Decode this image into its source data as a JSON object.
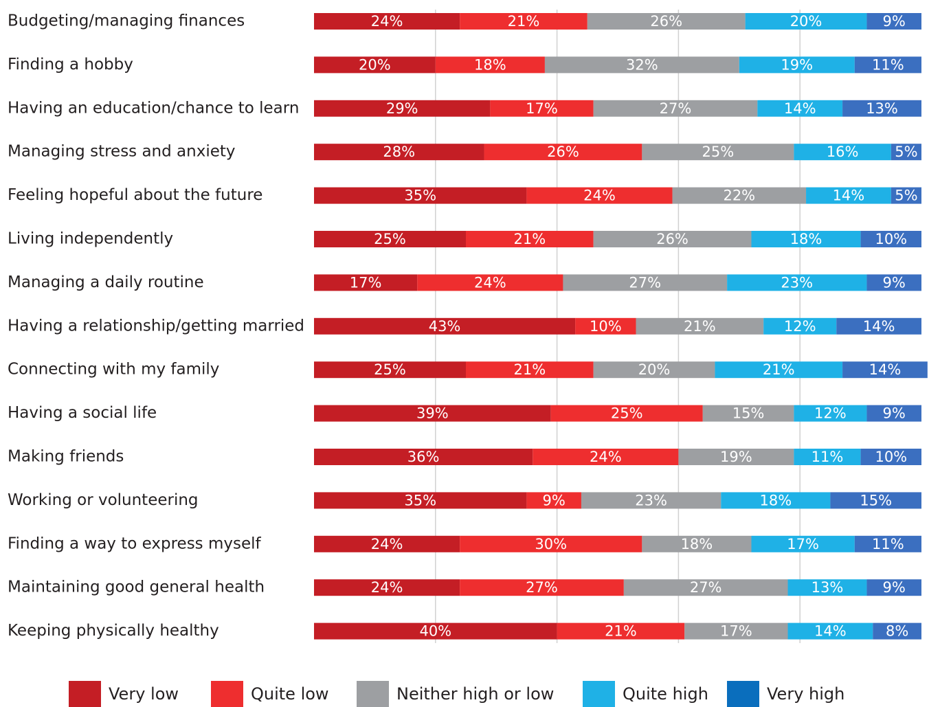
{
  "chart_data": {
    "type": "stacked_bar",
    "orientation": "horizontal",
    "categories": [
      "Budgeting/managing finances",
      "Finding a hobby",
      "Having an education/chance to learn",
      "Managing stress and anxiety",
      "Feeling hopeful about the future",
      "Living independently",
      "Managing a daily routine",
      "Having a relationship/getting married",
      "Connecting with my family",
      "Having a social life",
      "Making friends",
      "Working or volunteering",
      "Finding a way to express myself",
      "Maintaining good general health",
      "Keeping physically healthy"
    ],
    "series": [
      {
        "name": "Very low",
        "color": "#c41e25",
        "values": [
          24,
          20,
          29,
          28,
          35,
          25,
          17,
          43,
          25,
          39,
          36,
          35,
          24,
          24,
          40
        ],
        "value_labels": [
          "24%",
          "20%",
          "29%",
          "28%",
          "35%",
          "25%",
          "17%",
          "43%",
          "25%",
          "39%",
          "36%",
          "35%",
          "24%",
          "24%",
          "40%"
        ]
      },
      {
        "name": "Quite low",
        "color": "#ee2e2f",
        "values": [
          21,
          18,
          17,
          26,
          24,
          21,
          24,
          10,
          21,
          25,
          24,
          9,
          30,
          27,
          21
        ],
        "value_labels": [
          "21%",
          "18%",
          "17%",
          "26%",
          "24%",
          "21%",
          "24%",
          "10%",
          "21%",
          "25%",
          "24%",
          "9%",
          "30%",
          "27%",
          "21%"
        ]
      },
      {
        "name": "Neither high or low",
        "color": "#9d9fa2",
        "values": [
          26,
          32,
          27,
          25,
          22,
          26,
          27,
          21,
          20,
          15,
          19,
          23,
          18,
          27,
          17
        ],
        "value_labels": [
          "26%",
          "32%",
          "27%",
          "25%",
          "22%",
          "26%",
          "27%",
          "21%",
          "20%",
          "15%",
          "19%",
          "23%",
          "18%",
          "27%",
          "17%"
        ]
      },
      {
        "name": "Quite high",
        "color": "#1fb1e6",
        "values": [
          20,
          19,
          14,
          16,
          14,
          18,
          23,
          12,
          21,
          12,
          11,
          18,
          17,
          13,
          14
        ],
        "value_labels": [
          "20%",
          "19%",
          "14%",
          "16%",
          "14%",
          "18%",
          "23%",
          "12%",
          "21%",
          "12%",
          "11%",
          "18%",
          "17%",
          "13%",
          "14%"
        ]
      },
      {
        "name": "Very high",
        "color": "#3b6fc0",
        "values": [
          9,
          11,
          13,
          5,
          5,
          10,
          9,
          14,
          14,
          9,
          10,
          15,
          11,
          9,
          8
        ],
        "value_labels": [
          "9%",
          "11%",
          "13%",
          "5%",
          "5%",
          "10%",
          "9%",
          "14%",
          "14%",
          "9%",
          "10%",
          "15%",
          "11%",
          "9%",
          "8%"
        ]
      }
    ],
    "xlim": [
      0,
      100
    ],
    "xticks": [
      20,
      40,
      60,
      80
    ],
    "grid": true,
    "legend": "bottom"
  }
}
